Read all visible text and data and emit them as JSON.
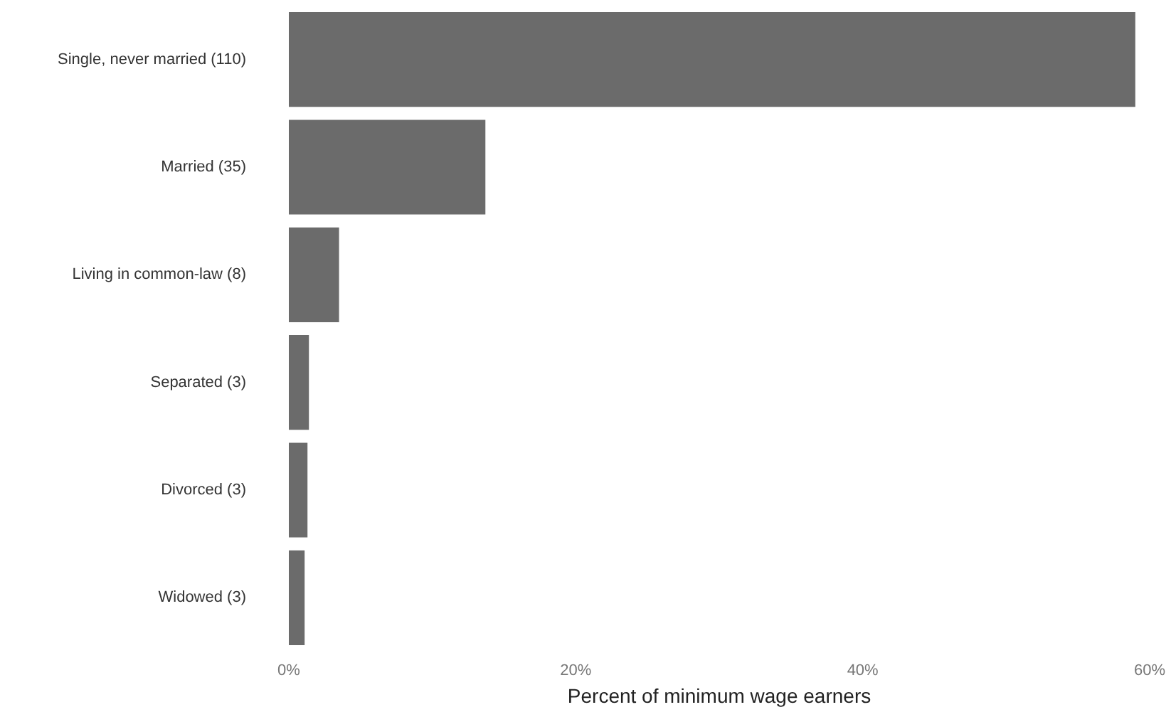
{
  "chart_data": {
    "type": "bar",
    "orientation": "horizontal",
    "xlabel": "Percent of minimum wage earners",
    "categories": [
      "Single, never married (110)",
      "Married (35)",
      "Living in common-law (8)",
      "Separated (3)",
      "Divorced (3)",
      "Widowed (3)"
    ],
    "values": [
      59,
      13.7,
      3.5,
      1.4,
      1.3,
      1.1
    ],
    "color": "#6b6b6b",
    "xlim": [
      0,
      60
    ],
    "xticks": [
      {
        "value": 0,
        "label": "0%"
      },
      {
        "value": 20,
        "label": "20%"
      },
      {
        "value": 40,
        "label": "40%"
      },
      {
        "value": 60,
        "label": "60%"
      }
    ],
    "grid": false
  }
}
